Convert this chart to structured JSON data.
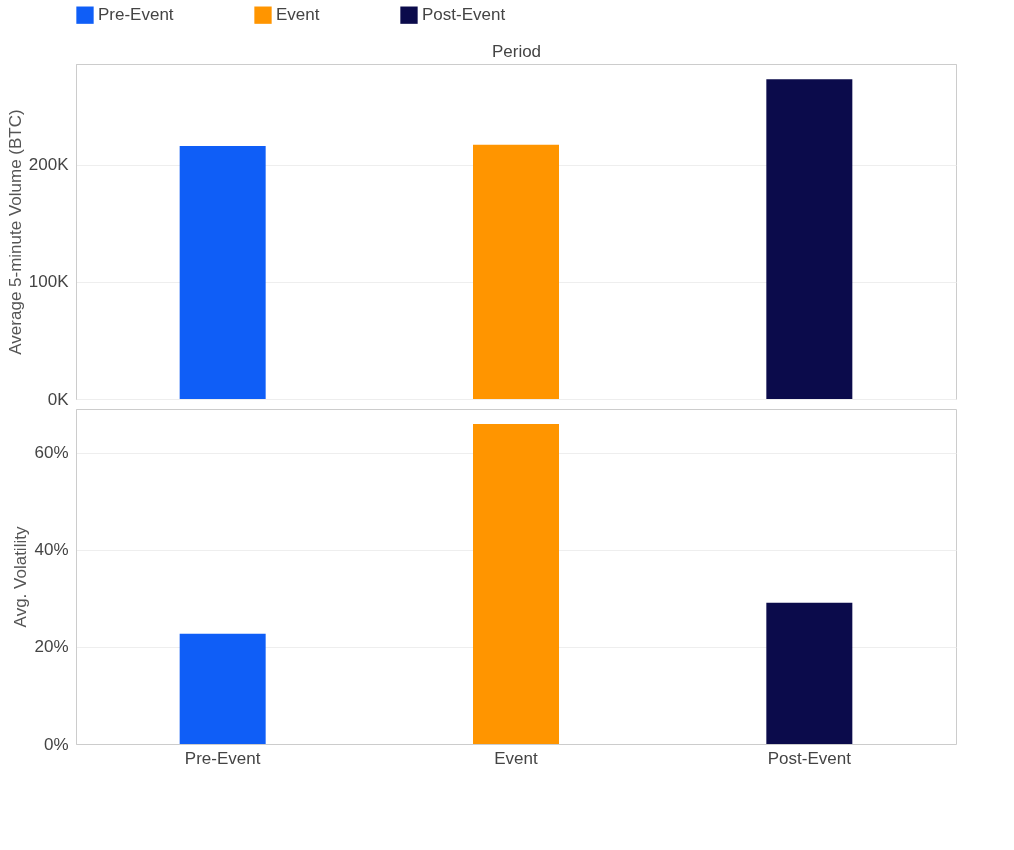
{
  "chart_data": [
    {
      "type": "bar",
      "xlabel": "Period",
      "ylabel": "Average 5-minute Volume (BTC)",
      "categories": [
        null,
        null,
        null
      ],
      "series": [
        {
          "name": "Pre-Event",
          "color": "#0f5ef7",
          "values": [
            216000,
            null,
            null
          ]
        },
        {
          "name": "Event",
          "color": "#ff9500",
          "values": [
            null,
            217000,
            null
          ]
        },
        {
          "name": "Post-Event",
          "color": "#0b0b4b",
          "values": [
            null,
            null,
            273000
          ]
        }
      ],
      "ylim": [
        0,
        286000
      ],
      "yticks": [
        {
          "value": 0,
          "label": "0K"
        },
        {
          "value": 100000,
          "label": "100K"
        },
        {
          "value": 200000,
          "label": "200K"
        }
      ],
      "grid": "y",
      "legend": "top left",
      "tick_labels": "y"
    },
    {
      "type": "bar",
      "ylabel": "Avg. Volatility",
      "categories": [
        "Pre-Event",
        "Event",
        "Post-Event"
      ],
      "series": [
        {
          "color": "#0f5ef7",
          "values": [
            22.7,
            null,
            null
          ]
        },
        {
          "color": "#ff9500",
          "values": [
            null,
            65.9,
            null
          ]
        },
        {
          "color": "#0b0b4b",
          "values": [
            null,
            null,
            29.1
          ]
        }
      ],
      "ylim": [
        0,
        69
      ],
      "yticks": [
        {
          "value": 0,
          "label": "0%"
        },
        {
          "value": 20,
          "label": "20%"
        },
        {
          "value": 40,
          "label": "40%"
        },
        {
          "value": 60,
          "label": "60%"
        }
      ],
      "grid": "y"
    }
  ]
}
